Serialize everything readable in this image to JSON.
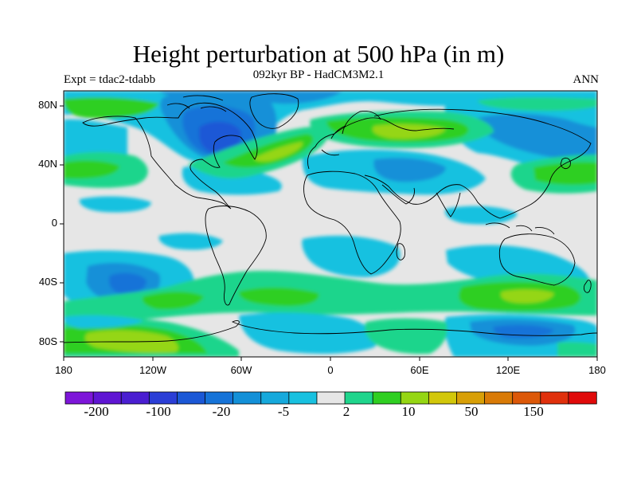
{
  "header": {
    "title": "Height perturbation at 500 hPa (in m)",
    "subtitle": "092kyr BP - HadCM3M2.1",
    "experiment": "Expt = tdac2-tdabb",
    "season": "ANN"
  },
  "axes": {
    "y_ticks": [
      "80N",
      "40N",
      "0",
      "40S",
      "80S"
    ],
    "x_ticks": [
      "180",
      "120W",
      "60W",
      "0",
      "60E",
      "120E",
      "180"
    ]
  },
  "colorbar": {
    "colors": [
      "#7d16d9",
      "#5f16d3",
      "#4a1ed1",
      "#2b3ed6",
      "#1b58d6",
      "#1673d8",
      "#1390d8",
      "#16a9dc",
      "#18c1e0",
      "#e6e6e6",
      "#1fd58c",
      "#2fcf21",
      "#95d613",
      "#d2c70a",
      "#d89f07",
      "#d97a06",
      "#dc5808",
      "#e0300c",
      "#e00a0a"
    ],
    "labels": [
      "-200",
      "-100",
      "-20",
      "-5",
      "2",
      "10",
      "50",
      "150"
    ]
  },
  "chart_data": {
    "type": "contour_map",
    "title": "Height perturbation at 500 hPa (in m)",
    "subtitle": "092kyr BP - HadCM3M2.1",
    "variable": "500 hPa geopotential height perturbation",
    "units": "m",
    "lon_range": [
      -180,
      180
    ],
    "lat_range": [
      -90,
      90
    ],
    "contour_levels": [
      -200,
      -100,
      -50,
      -20,
      -10,
      -5,
      -2,
      2,
      5,
      10,
      20,
      50,
      100,
      150,
      200
    ],
    "regions": [
      {
        "lon": -80,
        "lat": 65,
        "value": -30
      },
      {
        "lon": -20,
        "lat": 80,
        "value": -10
      },
      {
        "lon": 100,
        "lat": 75,
        "value": -8
      },
      {
        "lon": 150,
        "lat": 55,
        "value": -10
      },
      {
        "lon": 45,
        "lat": 35,
        "value": -8
      },
      {
        "lon": -40,
        "lat": 45,
        "value": 12
      },
      {
        "lon": 40,
        "lat": 65,
        "value": 10
      },
      {
        "lon": -170,
        "lat": 40,
        "value": 8
      },
      {
        "lon": -150,
        "lat": -45,
        "value": -8
      },
      {
        "lon": -140,
        "lat": -80,
        "value": 12
      },
      {
        "lon": 90,
        "lat": -55,
        "value": 10
      },
      {
        "lon": 120,
        "lat": -80,
        "value": -8
      },
      {
        "lon": -50,
        "lat": -50,
        "value": 6
      },
      {
        "lon": 120,
        "lat": -35,
        "value": -5
      }
    ]
  }
}
